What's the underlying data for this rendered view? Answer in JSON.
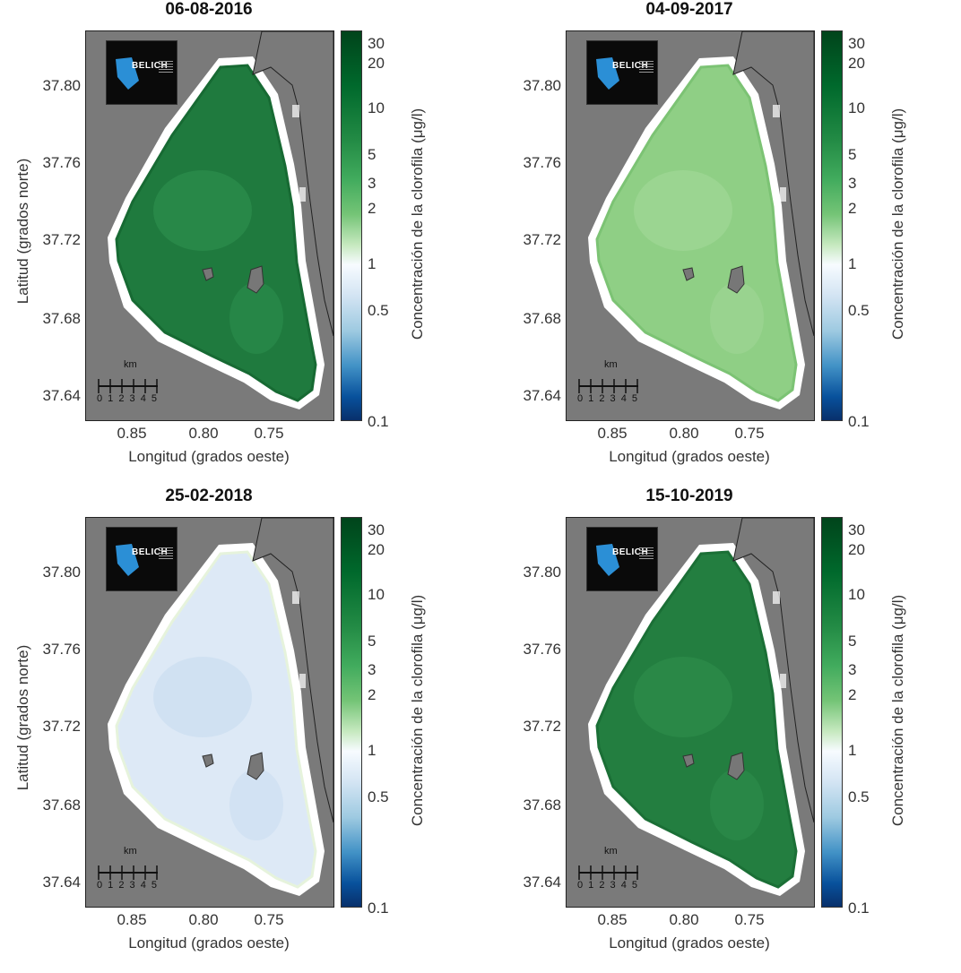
{
  "panels": [
    {
      "title": "06-08-2016",
      "fill": "#1f7a3e",
      "fill2": "#2e9150",
      "edge": "#176a33"
    },
    {
      "title": "04-09-2017",
      "fill": "#8fcf85",
      "fill2": "#a3d89a",
      "edge": "#7cc374"
    },
    {
      "title": "25-02-2018",
      "fill": "#dde9f6",
      "fill2": "#c8dcf0",
      "edge": "#e6f3dc"
    },
    {
      "title": "15-10-2019",
      "fill": "#237e40",
      "fill2": "#2f8f4d",
      "edge": "#1b6f36"
    }
  ],
  "y_ticks": [
    "37.80",
    "37.76",
    "37.72",
    "37.68",
    "37.64"
  ],
  "x_ticks": [
    "0.85",
    "0.80",
    "0.75"
  ],
  "y_label": "Latitud (grados norte)",
  "x_label": "Longitud (grados oeste)",
  "colorbar": {
    "title": "Concentración de la clorofila (μg/l)",
    "ticks": [
      "30",
      "20",
      "10",
      "5",
      "3",
      "2",
      "1",
      "0.5",
      "0.1"
    ]
  },
  "scale_bar": {
    "unit": "km",
    "labels": "0 1 2 3 4 5"
  },
  "logo_text": "BELICH",
  "colors": {
    "land": "#7a7a7a",
    "buffer": "#ffffff",
    "island": "#777777"
  }
}
